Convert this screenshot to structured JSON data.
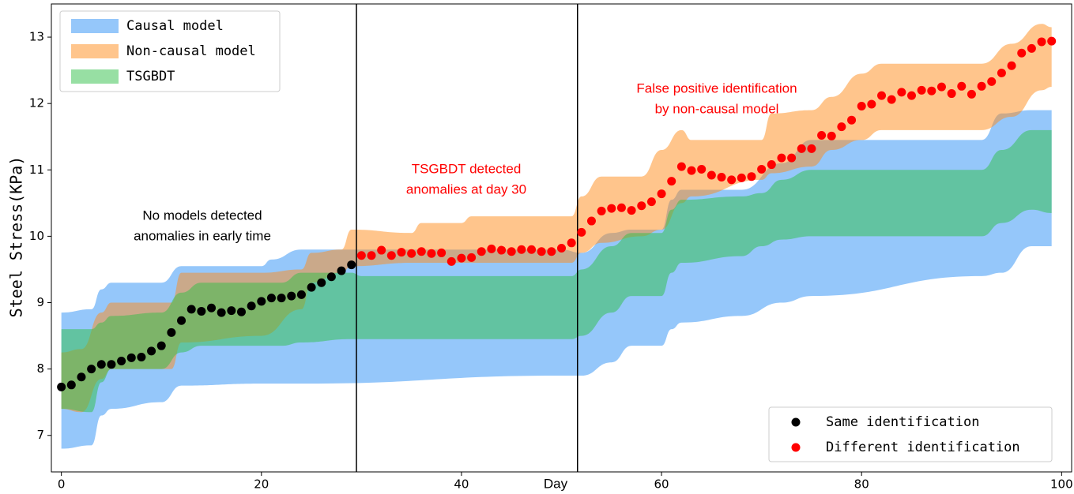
{
  "chart_data": {
    "type": "band_scatter",
    "xlabel": "Day",
    "ylabel": "Steel Stress(KPa)",
    "xlim": [
      -1,
      101
    ],
    "ylim": [
      6.45,
      13.5
    ],
    "xticks": [
      0,
      20,
      40,
      60,
      80,
      100
    ],
    "yticks": [
      7,
      8,
      9,
      10,
      11,
      12,
      13
    ],
    "band_alpha": 0.5,
    "band_legend": "upper left",
    "point_legend": "lower right",
    "bands": [
      {
        "name": "Causal model",
        "color": "#2b8ff5",
        "x": [
          0,
          3,
          4,
          5,
          10,
          12,
          20,
          21,
          24,
          50,
          52,
          55,
          57,
          60,
          61,
          62,
          68,
          72,
          75,
          92,
          94,
          97,
          99
        ],
        "upper": [
          8.85,
          8.9,
          9.2,
          9.3,
          9.3,
          9.55,
          9.55,
          9.65,
          9.8,
          9.8,
          9.75,
          10.05,
          10.1,
          10.1,
          10.55,
          10.7,
          10.7,
          11.1,
          11.45,
          11.45,
          11.85,
          11.9,
          11.9
        ],
        "lower": [
          6.8,
          6.85,
          7.3,
          7.4,
          7.5,
          7.75,
          7.78,
          7.78,
          7.78,
          7.9,
          7.9,
          8.1,
          8.35,
          8.35,
          8.6,
          8.7,
          8.8,
          9.0,
          9.1,
          9.4,
          9.45,
          9.85,
          9.85
        ]
      },
      {
        "name": "Non-causal model",
        "color": "#ff8c1a",
        "x": [
          0,
          2,
          4,
          5,
          11,
          12,
          20,
          24,
          25,
          28,
          29,
          35,
          36,
          40,
          41,
          51,
          52,
          54,
          58,
          60,
          62,
          63,
          70,
          71,
          75,
          77,
          80,
          82,
          92,
          95,
          98,
          99
        ],
        "upper": [
          8.25,
          8.3,
          8.85,
          9.0,
          9.0,
          9.45,
          9.45,
          9.5,
          9.75,
          9.8,
          10.1,
          10.05,
          10.2,
          10.2,
          10.3,
          10.3,
          10.6,
          10.9,
          10.9,
          11.3,
          11.6,
          11.45,
          11.45,
          11.85,
          11.9,
          12.1,
          12.45,
          12.6,
          12.6,
          12.9,
          13.2,
          13.15
        ],
        "lower": [
          7.4,
          7.35,
          7.85,
          8.0,
          8.0,
          8.4,
          8.5,
          8.9,
          9.3,
          9.45,
          9.55,
          9.6,
          9.6,
          9.6,
          9.6,
          9.6,
          9.75,
          9.9,
          10.0,
          10.1,
          10.5,
          10.6,
          10.85,
          10.95,
          11.05,
          11.3,
          11.45,
          11.6,
          11.6,
          11.8,
          12.2,
          12.25
        ]
      },
      {
        "name": "TSGBDT",
        "color": "#30c048",
        "x": [
          0,
          3,
          4,
          5,
          10,
          12,
          14,
          22,
          24,
          29,
          30,
          51,
          52,
          55,
          57,
          60,
          61,
          62,
          68,
          70,
          72,
          75,
          92,
          94,
          97,
          99
        ],
        "upper": [
          8.6,
          8.6,
          8.7,
          8.8,
          8.85,
          9.15,
          9.3,
          9.3,
          9.45,
          9.45,
          9.4,
          9.4,
          9.5,
          9.85,
          10.05,
          10.05,
          10.4,
          10.55,
          10.6,
          10.65,
          10.85,
          11.0,
          11.0,
          11.3,
          11.6,
          11.6
        ],
        "lower": [
          7.4,
          7.35,
          7.8,
          8.0,
          8.0,
          8.25,
          8.35,
          8.35,
          8.4,
          8.45,
          8.45,
          8.45,
          8.5,
          8.85,
          9.1,
          9.1,
          9.45,
          9.6,
          9.7,
          9.85,
          9.95,
          10.0,
          10.0,
          10.2,
          10.4,
          10.35
        ]
      }
    ],
    "series": [
      {
        "name": "Same identification",
        "color": "#000000",
        "x": [
          0,
          1,
          2,
          3,
          4,
          5,
          6,
          7,
          8,
          9,
          10,
          11,
          12,
          13,
          14,
          15,
          16,
          17,
          18,
          19,
          20,
          21,
          22,
          23,
          24,
          25,
          26,
          27,
          28,
          29
        ],
        "values": [
          7.73,
          7.76,
          7.88,
          8.0,
          8.07,
          8.07,
          8.12,
          8.17,
          8.18,
          8.27,
          8.35,
          8.55,
          8.73,
          8.9,
          8.87,
          8.92,
          8.85,
          8.88,
          8.86,
          8.95,
          9.02,
          9.07,
          9.07,
          9.1,
          9.12,
          9.23,
          9.3,
          9.39,
          9.48,
          9.57
        ]
      },
      {
        "name": "Different identification",
        "color": "#ff0000",
        "x": [
          30,
          31,
          32,
          33,
          34,
          35,
          36,
          37,
          38,
          39,
          40,
          41,
          42,
          43,
          44,
          45,
          46,
          47,
          48,
          49,
          50,
          51,
          52,
          53,
          54,
          55,
          56,
          57,
          58,
          59,
          60,
          61,
          62,
          63,
          64,
          65,
          66,
          67,
          68,
          69,
          70,
          71,
          72,
          73,
          74,
          75,
          76,
          77,
          78,
          79,
          80,
          81,
          82,
          83,
          84,
          85,
          86,
          87,
          88,
          89,
          90,
          91,
          92,
          93,
          94,
          95,
          96,
          97,
          98,
          99
        ],
        "values": [
          9.71,
          9.71,
          9.79,
          9.71,
          9.76,
          9.74,
          9.77,
          9.74,
          9.75,
          9.62,
          9.67,
          9.68,
          9.77,
          9.81,
          9.79,
          9.77,
          9.8,
          9.8,
          9.77,
          9.77,
          9.82,
          9.9,
          10.06,
          10.23,
          10.38,
          10.42,
          10.43,
          10.39,
          10.46,
          10.52,
          10.64,
          10.83,
          11.05,
          10.99,
          11.01,
          10.92,
          10.89,
          10.85,
          10.88,
          10.9,
          11.01,
          11.08,
          11.18,
          11.18,
          11.32,
          11.32,
          11.52,
          11.51,
          11.65,
          11.75,
          11.96,
          11.99,
          12.12,
          12.06,
          12.17,
          12.12,
          12.2,
          12.19,
          12.25,
          12.15,
          12.26,
          12.14,
          12.26,
          12.33,
          12.46,
          12.57,
          12.76,
          12.83,
          12.93,
          12.94
        ]
      }
    ],
    "vlines": [
      29.5,
      51.6
    ],
    "annotations": [
      {
        "lines": [
          "No models detected",
          "anomalies in early time"
        ],
        "color": "#000000"
      },
      {
        "lines": [
          "TSGBDT detected",
          "anomalies at day 30"
        ],
        "color": "#ff0000"
      },
      {
        "lines": [
          "False positive identification",
          "by non-causal model"
        ],
        "color": "#ff0000"
      }
    ]
  }
}
